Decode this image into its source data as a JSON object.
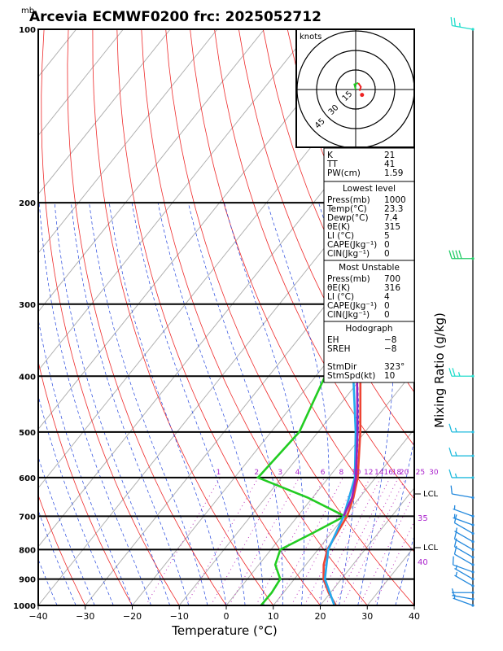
{
  "chart_data": {
    "type": "line",
    "title": "Arcevia ECMWF0200 frc: 2025052712",
    "pressure_unit": "mb",
    "xlabel": "Temperature (°C)",
    "right_axis_label": "Mixing Ratio (g/kg)",
    "xlim": [
      -40,
      40
    ],
    "ylim": [
      1000,
      100
    ],
    "yscale": "log",
    "x_ticks": [
      -40,
      -30,
      -20,
      -10,
      0,
      10,
      20,
      30,
      40
    ],
    "pressure_ticks": [
      100,
      200,
      300,
      400,
      500,
      600,
      700,
      800,
      900,
      1000
    ],
    "mixing_ratio_labels": [
      "1",
      "2",
      "3",
      "4",
      "6",
      "8",
      "10",
      "12",
      "14",
      "16",
      "18",
      "20",
      "25",
      "30"
    ],
    "side_labels": [
      "LCL",
      "35",
      "LCL",
      "40"
    ],
    "series": [
      {
        "key": "temperature",
        "color": "#ee4433",
        "p": [
          1000,
          950,
          900,
          850,
          800,
          750,
          700,
          650,
          600,
          500,
          400,
          300,
          250,
          200,
          150,
          100
        ],
        "t": [
          23.3,
          19.6,
          16.2,
          13.8,
          12.0,
          11.3,
          10.5,
          8.7,
          6.2,
          -1.0,
          -10.5,
          -24.0,
          -32.0,
          -30.5,
          -20.0,
          -13.0
        ]
      },
      {
        "key": "dewpoint",
        "color": "#22cc22",
        "p": [
          1000,
          950,
          900,
          850,
          800,
          750,
          700,
          650,
          600,
          500,
          400,
          300,
          250,
          200,
          150,
          100
        ],
        "t": [
          7.4,
          7.5,
          7.0,
          3.5,
          2.0,
          6.0,
          10.0,
          -1.0,
          -15.0,
          -14.0,
          -18.0,
          -26.0,
          -33.0,
          -45.0,
          -55.0,
          -70.0
        ]
      },
      {
        "key": "wetbulb",
        "color": "#22aaee",
        "p": [
          1000,
          900,
          800,
          700,
          600,
          500,
          400,
          300,
          200,
          100
        ],
        "t": [
          23.0,
          16.5,
          12.2,
          9.8,
          5.6,
          -2.0,
          -12.0,
          -26.0,
          -45.0,
          -72.0
        ]
      },
      {
        "key": "parcel",
        "color": "#9922bb",
        "p": [
          700,
          650,
          600,
          500,
          400,
          300,
          200,
          100
        ],
        "t": [
          9.8,
          8.4,
          5.8,
          -1.6,
          -11.2,
          -25.0,
          -44.0,
          -72.0
        ]
      }
    ],
    "hodograph": {
      "unit_label": "knots",
      "ring_labels": [
        "15",
        "30",
        "45"
      ],
      "points": [
        [
          0,
          0
        ],
        [
          -1,
          4
        ],
        [
          2,
          5
        ],
        [
          4,
          2
        ],
        [
          3,
          -1
        ]
      ]
    },
    "wind_barbs": [
      {
        "p": 1000,
        "dir": 290,
        "spd": 5
      },
      {
        "p": 975,
        "dir": 280,
        "spd": 5
      },
      {
        "p": 950,
        "dir": 270,
        "spd": 5
      },
      {
        "p": 925,
        "dir": 300,
        "spd": 5
      },
      {
        "p": 900,
        "dir": 300,
        "spd": 5
      },
      {
        "p": 875,
        "dir": 290,
        "spd": 10
      },
      {
        "p": 850,
        "dir": 300,
        "spd": 10
      },
      {
        "p": 825,
        "dir": 300,
        "spd": 10
      },
      {
        "p": 800,
        "dir": 300,
        "spd": 10
      },
      {
        "p": 775,
        "dir": 300,
        "spd": 5
      },
      {
        "p": 750,
        "dir": 300,
        "spd": 10
      },
      {
        "p": 725,
        "dir": 290,
        "spd": 5
      },
      {
        "p": 700,
        "dir": 290,
        "spd": 5
      },
      {
        "p": 650,
        "dir": 280,
        "spd": 10
      },
      {
        "p": 600,
        "dir": 270,
        "spd": 15
      },
      {
        "p": 550,
        "dir": 270,
        "spd": 15
      },
      {
        "p": 500,
        "dir": 270,
        "spd": 15
      },
      {
        "p": 400,
        "dir": 270,
        "spd": 25
      },
      {
        "p": 250,
        "dir": 270,
        "spd": 40
      },
      {
        "p": 100,
        "dir": 280,
        "spd": 25
      }
    ]
  },
  "info_table": {
    "summary": [
      [
        "K",
        "21"
      ],
      [
        "TT",
        "41"
      ],
      [
        "PW(cm)",
        "1.59"
      ]
    ],
    "lowest_level": {
      "title": "Lowest level",
      "rows": [
        [
          "Press(mb)",
          "1000"
        ],
        [
          "Temp(°C)",
          "23.3"
        ],
        [
          "Dewp(°C)",
          "7.4"
        ],
        [
          "θE(K)",
          "315"
        ],
        [
          "LI (°C)",
          "5"
        ],
        [
          "CAPE(Jkg⁻¹)",
          "0"
        ],
        [
          "CIN(Jkg⁻¹)",
          "0"
        ]
      ]
    },
    "most_unstable": {
      "title": "Most Unstable",
      "rows": [
        [
          "Press(mb)",
          "700"
        ],
        [
          "θE(K)",
          "316"
        ],
        [
          "LI (°C)",
          "4"
        ],
        [
          "CAPE(Jkg⁻¹)",
          "0"
        ],
        [
          "CIN(Jkg⁻¹)",
          "0"
        ]
      ]
    },
    "hodograph_box": {
      "title": "Hodograph",
      "rows": [
        [
          "EH",
          "−8"
        ],
        [
          "SREH",
          "−8"
        ],
        [
          "",
          ""
        ],
        [
          "StmDir",
          "323°"
        ],
        [
          "StmSpd(kt)",
          "10"
        ]
      ]
    }
  }
}
